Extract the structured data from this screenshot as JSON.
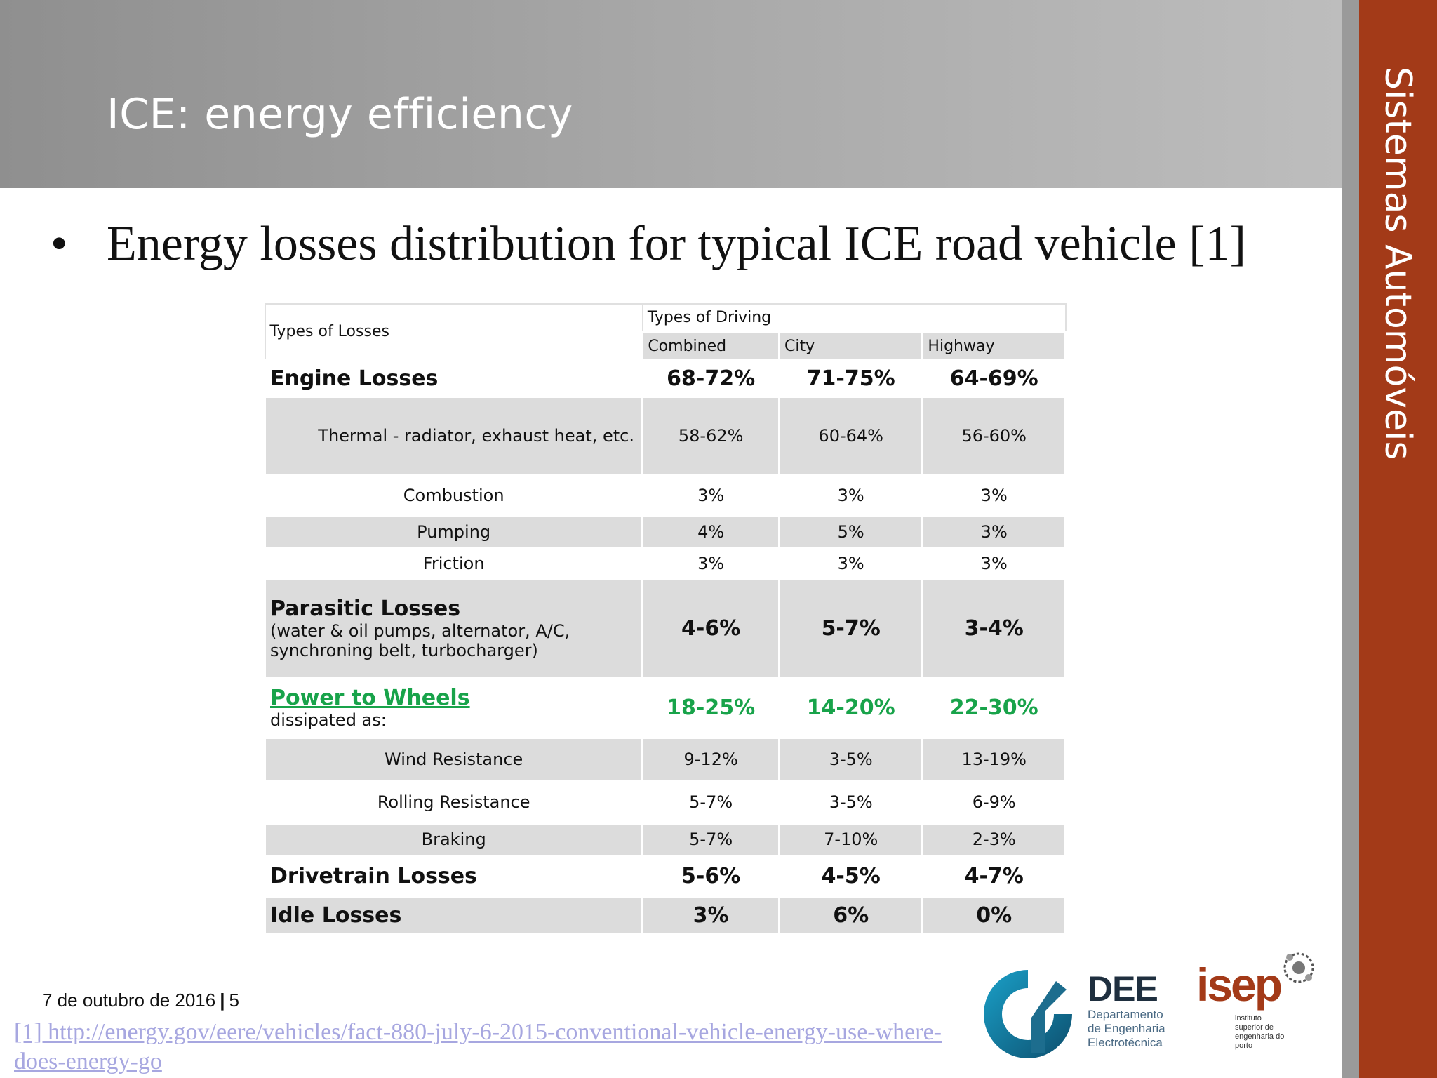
{
  "slide": {
    "title": "ICE: energy efficiency",
    "side_label": "Sistemas Automóveis",
    "bullet_symbol": "•",
    "bullet_text": "Energy losses distribution for typical ICE road vehicle [1]"
  },
  "table": {
    "corner_label": "Types of Losses",
    "group_label": "Types of Driving",
    "columns": [
      "Combined",
      "City",
      "Highway"
    ],
    "rows": [
      {
        "label": "Engine Losses",
        "values": [
          "68-72%",
          "71-75%",
          "64-69%"
        ]
      },
      {
        "label": "Thermal - radiator, exhaust heat, etc.",
        "values": [
          "58-62%",
          "60-64%",
          "56-60%"
        ]
      },
      {
        "label": "Combustion",
        "values": [
          "3%",
          "3%",
          "3%"
        ]
      },
      {
        "label": "Pumping",
        "values": [
          "4%",
          "5%",
          "3%"
        ]
      },
      {
        "label": "Friction",
        "values": [
          "3%",
          "3%",
          "3%"
        ]
      },
      {
        "label": "Parasitic Losses",
        "note_line1": "(water & oil pumps, alternator, A/C,",
        "note_line2": "synchroning belt, turbocharger)",
        "values": [
          "4-6%",
          "5-7%",
          "3-4%"
        ]
      },
      {
        "label": "Power to Wheels",
        "note": "dissipated as:",
        "values": [
          "18-25%",
          "14-20%",
          "22-30%"
        ]
      },
      {
        "label": "Wind Resistance",
        "values": [
          "9-12%",
          "3-5%",
          "13-19%"
        ]
      },
      {
        "label": "Rolling Resistance",
        "values": [
          "5-7%",
          "3-5%",
          "6-9%"
        ]
      },
      {
        "label": "Braking",
        "values": [
          "5-7%",
          "7-10%",
          "2-3%"
        ]
      },
      {
        "label": "Drivetrain Losses",
        "values": [
          "5-6%",
          "4-5%",
          "4-7%"
        ]
      },
      {
        "label": "Idle Losses",
        "values": [
          "3%",
          "6%",
          "0%"
        ]
      }
    ]
  },
  "footer": {
    "date": "7 de outubro de 2016",
    "separator": "|",
    "page": "5",
    "reference_line1": "[1] http://energy.gov/eere/vehicles/fact-880-july-6-2015-conventional-vehicle-energy-use-where-",
    "reference_line2": "does-energy-go"
  },
  "logos": {
    "dee_title": "DEE",
    "dee_line1": "Departamento",
    "dee_line2": "de Engenharia",
    "dee_line3": "Electrotécnica",
    "isep_title": "isep",
    "isep_line1": "instituto",
    "isep_line2": "superior de",
    "isep_line3": "engenharia do",
    "isep_line4": "porto"
  },
  "colors": {
    "accent_band": "#a33a18",
    "header_gray": "#a8a8a8",
    "power_green": "#18a34a",
    "link": "#a7a7e0"
  }
}
